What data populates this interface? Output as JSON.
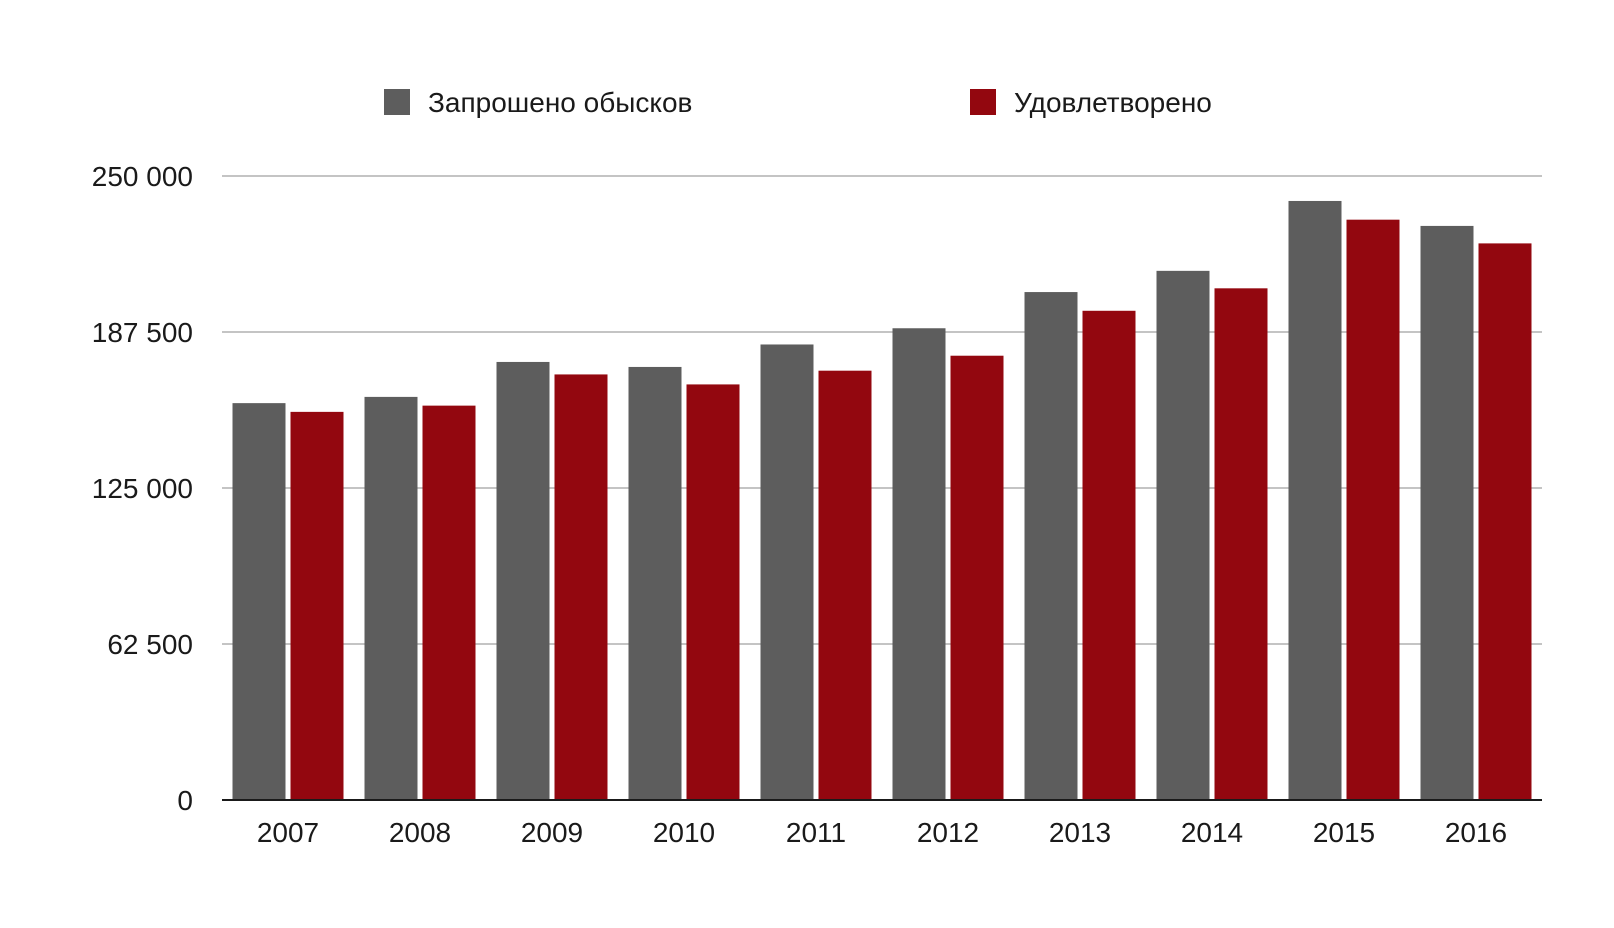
{
  "chart_data": {
    "type": "bar",
    "categories": [
      "2007",
      "2008",
      "2009",
      "2010",
      "2011",
      "2012",
      "2013",
      "2014",
      "2015",
      "2016"
    ],
    "series": [
      {
        "name": "Запрошено обысков",
        "color": "#5d5d5d",
        "values": [
          159000,
          161500,
          175500,
          173500,
          182500,
          189000,
          203500,
          212000,
          240000,
          230000
        ]
      },
      {
        "name": "Удовлетворено",
        "color": "#93070f",
        "values": [
          155500,
          158000,
          170500,
          166500,
          172000,
          178000,
          196000,
          205000,
          232500,
          223000
        ]
      }
    ],
    "ylim": [
      0,
      250000
    ],
    "yticks": [
      0,
      62500,
      125000,
      187500,
      250000
    ],
    "ytick_labels": [
      "0",
      "62 500",
      "125 000",
      "187 500",
      "250 000"
    ],
    "grid": true,
    "legend_position": "top-center",
    "title": "",
    "xlabel": "",
    "ylabel": ""
  }
}
